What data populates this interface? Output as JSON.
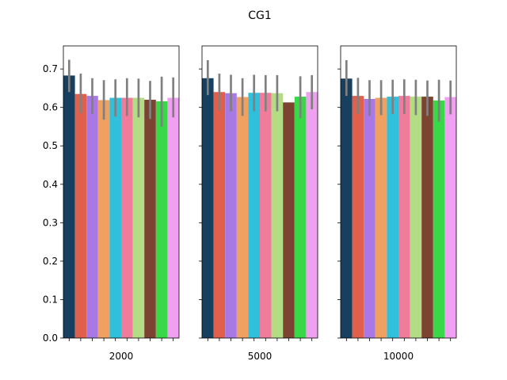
{
  "chart_data": {
    "type": "bar",
    "title": "CG1",
    "ylim": [
      0,
      0.76
    ],
    "yticks": [
      0.0,
      0.1,
      0.2,
      0.3,
      0.4,
      0.5,
      0.6,
      0.7
    ],
    "ytick_labels": [
      "0.0",
      "0.1",
      "0.2",
      "0.3",
      "0.4",
      "0.5",
      "0.6",
      "0.7"
    ],
    "grid": false,
    "legend": "none",
    "colors": [
      "#173f5f",
      "#e0604c",
      "#a878e4",
      "#f0a060",
      "#30c0dc",
      "#f07c9c",
      "#b4dc84",
      "#7c4430",
      "#38d848",
      "#f0a0f0"
    ],
    "error_color": "#808080",
    "panels": [
      {
        "label": "2000",
        "values": [
          0.683,
          0.635,
          0.63,
          0.619,
          0.625,
          0.625,
          0.625,
          0.62,
          0.616,
          0.625
        ],
        "err_low": [
          0.64,
          0.585,
          0.583,
          0.568,
          0.576,
          0.578,
          0.574,
          0.57,
          0.55,
          0.574
        ],
        "err_high": [
          0.724,
          0.688,
          0.676,
          0.671,
          0.673,
          0.676,
          0.675,
          0.669,
          0.68,
          0.678
        ]
      },
      {
        "label": "5000",
        "values": [
          0.676,
          0.64,
          0.637,
          0.627,
          0.638,
          0.638,
          0.637,
          0.613,
          0.628,
          0.64
        ],
        "err_low": [
          0.632,
          0.592,
          0.59,
          0.578,
          0.59,
          0.59,
          0.59,
          null,
          0.572,
          0.595
        ],
        "err_high": [
          0.723,
          0.688,
          0.685,
          0.676,
          0.685,
          0.684,
          0.684,
          null,
          0.681,
          0.684
        ]
      },
      {
        "label": "10000",
        "values": [
          0.675,
          0.63,
          0.622,
          0.625,
          0.628,
          0.63,
          0.628,
          0.628,
          0.618,
          0.627
        ],
        "err_low": [
          0.63,
          0.583,
          0.578,
          0.58,
          0.583,
          0.583,
          0.58,
          0.578,
          0.563,
          0.582
        ],
        "err_high": [
          0.723,
          0.677,
          0.671,
          0.671,
          0.672,
          0.673,
          0.672,
          0.67,
          0.672,
          0.67
        ]
      }
    ]
  }
}
